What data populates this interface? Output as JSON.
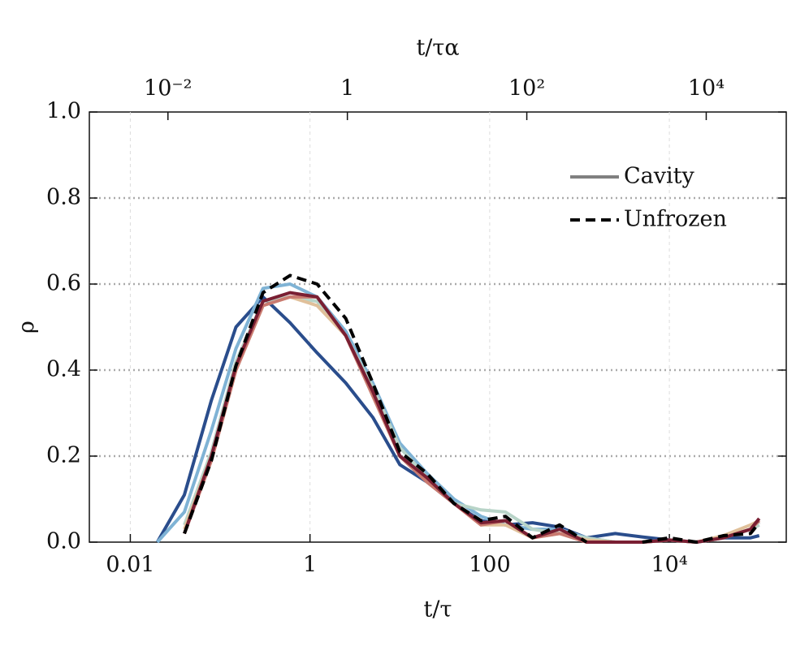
{
  "chart_data": {
    "type": "line",
    "xlabel": "t/τ",
    "ylabel": "ρ",
    "x2label": "t/τα",
    "xscale": "log",
    "x2scale": "log",
    "xlim": [
      0.0035,
      200000
    ],
    "xticks": [
      0.01,
      1,
      100,
      {
        "value": 10000,
        "label": "10⁴"
      }
    ],
    "x2lim": [
      0.00133,
      78000
    ],
    "x2ticks": [
      {
        "value": 0.01,
        "label": "10⁻²"
      },
      1,
      {
        "value": 100,
        "label": "10²"
      },
      {
        "value": 10000,
        "label": "10⁴"
      }
    ],
    "ylim": [
      0,
      1
    ],
    "yticks": [
      {
        "value": 0,
        "label": "0.0"
      },
      {
        "value": 0.2,
        "label": "0.2"
      },
      {
        "value": 0.4,
        "label": "0.4"
      },
      {
        "value": 0.6,
        "label": "0.6"
      },
      {
        "value": 0.8,
        "label": "0.8"
      },
      {
        "value": 1,
        "label": "1.0"
      }
    ],
    "grid": true,
    "x": [
      0.02,
      0.04,
      0.08,
      0.15,
      0.3,
      0.6,
      1.2,
      2.5,
      5,
      10,
      20,
      40,
      80,
      150,
      300,
      600,
      1200,
      2500,
      5000,
      10000,
      20000,
      40000,
      80000,
      100000
    ],
    "series": [
      {
        "color": "#2a4d8c",
        "dashed": false,
        "values": [
          0.0,
          0.11,
          0.33,
          0.5,
          0.57,
          0.51,
          0.44,
          0.37,
          0.29,
          0.18,
          0.14,
          0.09,
          0.05,
          0.04,
          0.045,
          0.035,
          0.01,
          0.02,
          0.012,
          0.005,
          0.0,
          0.01,
          0.01,
          0.015
        ]
      },
      {
        "color": "#7fb3d5",
        "dashed": false,
        "values": [
          0.0,
          0.07,
          0.26,
          0.45,
          0.59,
          0.6,
          0.57,
          0.49,
          0.37,
          0.23,
          0.16,
          0.1,
          0.06,
          0.04,
          0.03,
          0.03,
          0.01,
          0.0,
          0.0,
          0.005,
          0.0,
          0.01,
          0.03,
          0.04
        ]
      },
      {
        "color": "#b8d4c8",
        "dashed": false,
        "values": [
          null,
          0.04,
          0.21,
          0.42,
          0.56,
          0.57,
          0.56,
          0.48,
          0.36,
          0.22,
          0.15,
          0.09,
          0.075,
          0.07,
          0.03,
          0.02,
          0.01,
          0.0,
          0.0,
          0.005,
          0.0,
          0.01,
          0.03,
          0.04
        ]
      },
      {
        "color": "#e0c09a",
        "dashed": false,
        "values": [
          null,
          0.03,
          0.2,
          0.4,
          0.55,
          0.57,
          0.55,
          0.48,
          0.34,
          0.2,
          0.14,
          0.09,
          0.04,
          0.04,
          0.01,
          0.02,
          0.005,
          0.0,
          0.0,
          0.005,
          0.0,
          0.015,
          0.04,
          0.05
        ]
      },
      {
        "color": "#c97a70",
        "dashed": false,
        "values": [
          null,
          0.02,
          0.19,
          0.4,
          0.55,
          0.57,
          0.57,
          0.48,
          0.34,
          0.2,
          0.14,
          0.09,
          0.04,
          0.05,
          0.01,
          0.02,
          0.0,
          0.0,
          0.0,
          0.005,
          0.0,
          0.01,
          0.03,
          0.05
        ]
      },
      {
        "color": "#7a1f33",
        "dashed": false,
        "values": [
          null,
          0.02,
          0.2,
          0.41,
          0.56,
          0.58,
          0.57,
          0.48,
          0.35,
          0.2,
          0.15,
          0.09,
          0.045,
          0.05,
          0.01,
          0.03,
          0.0,
          0.0,
          0.0,
          0.005,
          0.0,
          0.01,
          0.03,
          0.055
        ]
      },
      {
        "color": "#000000",
        "dashed": true,
        "values": [
          null,
          0.02,
          0.19,
          0.41,
          0.58,
          0.62,
          0.6,
          0.52,
          0.37,
          0.21,
          0.16,
          0.09,
          0.05,
          0.06,
          0.01,
          0.04,
          0.0,
          null,
          0.0,
          0.01,
          0.0,
          0.015,
          0.02,
          0.045
        ]
      }
    ],
    "legend": {
      "position": "upper right",
      "entries": [
        {
          "label": "Cavity",
          "color": "#808080",
          "dashed": false
        },
        {
          "label": "Unfrozen",
          "color": "#000000",
          "dashed": true
        }
      ]
    }
  }
}
